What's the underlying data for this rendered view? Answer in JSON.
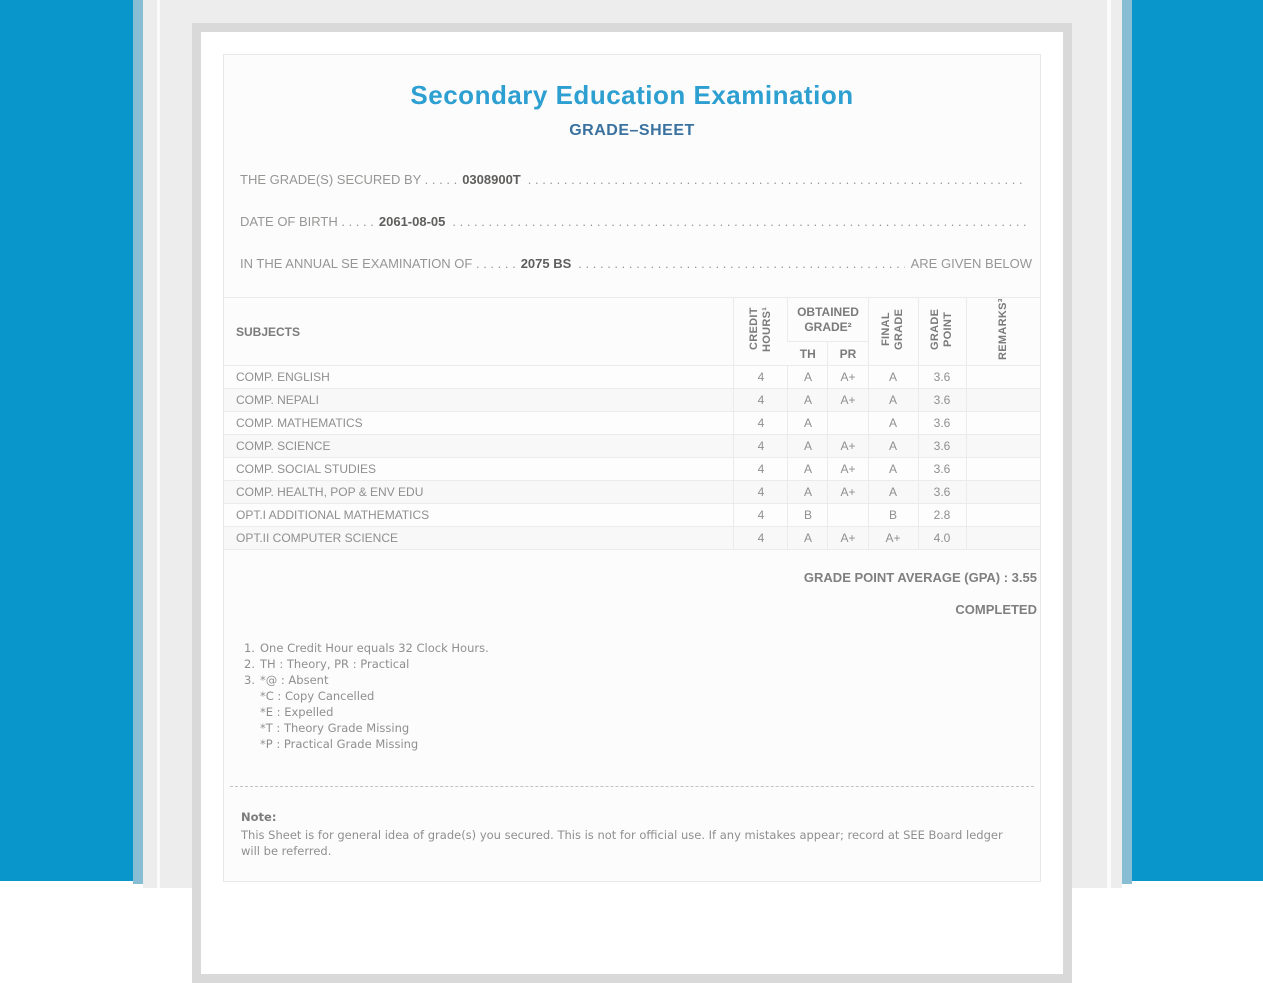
{
  "colors": {
    "accent_blue": "#0996cb",
    "strip_blue": "#87bed4",
    "page_gray": "#ededed",
    "title_blue": "#2d9fd0",
    "subtitle_blue": "#39719f"
  },
  "header": {
    "title": "Secondary Education Examination",
    "subtitle": "GRADE–SHEET"
  },
  "info": {
    "dot_fill": ". . . . . . . . . . . . . . . . . . . . . . . . . . . . . . . . . . . . . . . . . . . . . . . . . . . . . . . . . . . . . . . . . . . . . . . . . . . . . . . . . . . . . . . . . . .",
    "lines": [
      {
        "label": "THE GRADE(S) SECURED BY . . . . .",
        "value": "0308900T",
        "suffix": ""
      },
      {
        "label": "DATE OF BIRTH . . . . .",
        "value": "2061-08-05",
        "suffix": ""
      },
      {
        "label": "IN THE ANNUAL SE EXAMINATION OF . . . . . .",
        "value": "2075 BS",
        "suffix": "ARE GIVEN BELOW"
      }
    ]
  },
  "table": {
    "headers": {
      "subjects": "SUBJECTS",
      "credit_hours": "CREDIT HOURS¹",
      "obtained_grade": "OBTAINED GRADE²",
      "th": "TH",
      "pr": "PR",
      "final_grade": "FINAL GRADE",
      "grade_point": "GRADE POINT",
      "remarks": "REMARKS³"
    },
    "rows": [
      {
        "subject": "COMP. ENGLISH",
        "credit": "4",
        "th": "A",
        "pr": "A+",
        "final": "A",
        "point": "3.6",
        "remark": ""
      },
      {
        "subject": "COMP. NEPALI",
        "credit": "4",
        "th": "A",
        "pr": "A+",
        "final": "A",
        "point": "3.6",
        "remark": ""
      },
      {
        "subject": "COMP. MATHEMATICS",
        "credit": "4",
        "th": "A",
        "pr": "",
        "final": "A",
        "point": "3.6",
        "remark": ""
      },
      {
        "subject": "COMP. SCIENCE",
        "credit": "4",
        "th": "A",
        "pr": "A+",
        "final": "A",
        "point": "3.6",
        "remark": ""
      },
      {
        "subject": "COMP. SOCIAL STUDIES",
        "credit": "4",
        "th": "A",
        "pr": "A+",
        "final": "A",
        "point": "3.6",
        "remark": ""
      },
      {
        "subject": "COMP. HEALTH, POP & ENV EDU",
        "credit": "4",
        "th": "A",
        "pr": "A+",
        "final": "A",
        "point": "3.6",
        "remark": ""
      },
      {
        "subject": "OPT.I ADDITIONAL MATHEMATICS",
        "credit": "4",
        "th": "B",
        "pr": "",
        "final": "B",
        "point": "2.8",
        "remark": ""
      },
      {
        "subject": "OPT.II COMPUTER SCIENCE",
        "credit": "4",
        "th": "A",
        "pr": "A+",
        "final": "A+",
        "point": "4.0",
        "remark": ""
      }
    ]
  },
  "summary": {
    "gpa_line": "GRADE POINT AVERAGE (GPA) : 3.55",
    "status": "COMPLETED"
  },
  "footnotes": [
    {
      "num": "1.",
      "lines": [
        "One Credit Hour equals 32 Clock Hours."
      ]
    },
    {
      "num": "2.",
      "lines": [
        "TH : Theory, PR : Practical"
      ]
    },
    {
      "num": "3.",
      "lines": [
        "*@ : Absent",
        "*C : Copy Cancelled",
        "*E : Expelled",
        "*T : Theory Grade Missing",
        "*P : Practical Grade Missing"
      ]
    }
  ],
  "note": {
    "title": "Note:",
    "text": "This Sheet is for general idea of grade(s) you secured. This is not for official use. If any mistakes appear; record at SEE Board ledger will be referred."
  }
}
